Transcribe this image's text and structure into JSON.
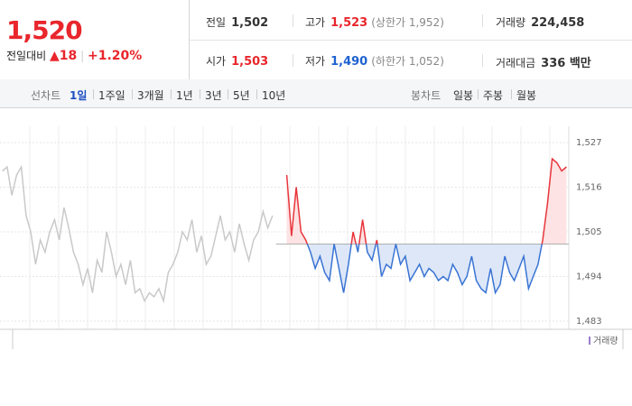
{
  "quote": {
    "price": "1,520",
    "change_label": "전일대비",
    "change_arrow": "▲",
    "change": "18",
    "change_pct": "+1.20%"
  },
  "stats": {
    "prev_close": {
      "label": "전일",
      "value": {
        "value": 1502,
        "label": "1,502"
      }
    },
    "high": {
      "label": "고가",
      "value": "1,523",
      "note": "(상한가 1,952)"
    },
    "volume": {
      "label": "거래량",
      "value": "224,458"
    },
    "open": {
      "label": "시가",
      "value": "1,503"
    },
    "low": {
      "label": "저가",
      "value": "1,490",
      "note": "(하한가 1,052)"
    },
    "amount": {
      "label": "거래대금",
      "value": "336 백만"
    }
  },
  "tabs": {
    "line_label": "선차트",
    "line_periods": [
      "1일",
      "1주일",
      "3개월",
      "1년",
      "3년",
      "5년",
      "10년"
    ],
    "candle_label": "봉차트",
    "candle_periods": [
      "일봉",
      "주봉",
      "월봉"
    ]
  },
  "chart_data": {
    "type": "line",
    "legend": "거래량",
    "ylim": [
      1481,
      1531
    ],
    "yticks": [
      {
        "value": 1527,
        "label": "1,527"
      },
      {
        "value": 1516,
        "label": "1,516"
      },
      {
        "value": 1505,
        "label": "1,505"
      },
      {
        "value": 1494,
        "label": "1,494"
      },
      {
        "value": 1483,
        "label": "1,483"
      }
    ],
    "up_color": "#e8363c",
    "down_color": "#3a74d4",
    "up_fill": "#fde3e3",
    "down_fill": "#dde7f7",
    "series": [
      {
        "color": "#c9c9c9",
        "values": [
          1520,
          1521,
          1514,
          1519,
          1521,
          1509,
          1505,
          1497,
          1503,
          1500,
          1505,
          1508,
          1503,
          1511,
          1506,
          1500,
          1497,
          1492,
          1496,
          1490,
          1498,
          1495,
          1505,
          1500,
          1494,
          1497,
          1492,
          1498,
          1490,
          1491,
          1488,
          1490,
          1489,
          1491,
          1488,
          1495,
          1497,
          1500,
          1505,
          1503,
          1508,
          1500,
          1504,
          1497,
          1499,
          1504,
          1509,
          1503,
          1505,
          1500,
          1507,
          1502,
          1498,
          1503,
          1505,
          1510,
          1506,
          1509,
          null,
          null,
          null,
          null,
          null,
          null,
          null,
          null,
          null,
          null,
          null,
          null,
          null,
          null,
          null,
          null,
          null,
          null,
          null,
          null,
          null,
          null,
          null,
          null,
          null,
          null,
          null,
          null,
          null,
          null,
          null,
          null,
          null,
          null,
          null,
          null,
          null,
          null,
          null,
          null,
          null,
          null,
          null,
          null,
          null,
          null,
          null,
          null,
          null,
          null,
          null,
          null,
          null,
          null,
          null,
          null,
          null,
          null,
          null,
          null,
          null,
          null
        ]
      },
      {
        "values": [
          null,
          null,
          null,
          null,
          null,
          null,
          null,
          null,
          null,
          null,
          null,
          null,
          null,
          null,
          null,
          null,
          null,
          null,
          null,
          null,
          null,
          null,
          null,
          null,
          null,
          null,
          null,
          null,
          null,
          null,
          null,
          null,
          null,
          null,
          null,
          null,
          null,
          null,
          null,
          null,
          null,
          null,
          null,
          null,
          null,
          null,
          null,
          null,
          null,
          null,
          null,
          null,
          null,
          null,
          null,
          null,
          null,
          null,
          null,
          null,
          1519,
          1504,
          1516,
          1505,
          1503,
          1500,
          1496,
          1499,
          1495,
          1493,
          1502,
          1496,
          1490,
          1497,
          1505,
          1500,
          1508,
          1500,
          1498,
          1503,
          1494,
          1497,
          1496,
          1502,
          1497,
          1499,
          1493,
          1495,
          1497,
          1494,
          1496,
          1495,
          1493,
          1494,
          1493,
          1497,
          1495,
          1492,
          1494,
          1499,
          1493,
          1491,
          1490,
          1496,
          1490,
          1492,
          1499,
          1495,
          1493,
          1496,
          1499,
          1491,
          1494,
          1497,
          1503,
          1512,
          1523,
          1522,
          1520,
          1521
        ]
      }
    ]
  }
}
